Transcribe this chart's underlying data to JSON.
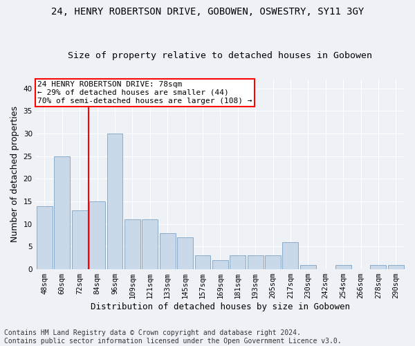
{
  "title": "24, HENRY ROBERTSON DRIVE, GOBOWEN, OSWESTRY, SY11 3GY",
  "subtitle": "Size of property relative to detached houses in Gobowen",
  "xlabel": "Distribution of detached houses by size in Gobowen",
  "ylabel": "Number of detached properties",
  "categories": [
    "48sqm",
    "60sqm",
    "72sqm",
    "84sqm",
    "96sqm",
    "109sqm",
    "121sqm",
    "133sqm",
    "145sqm",
    "157sqm",
    "169sqm",
    "181sqm",
    "193sqm",
    "205sqm",
    "217sqm",
    "230sqm",
    "242sqm",
    "254sqm",
    "266sqm",
    "278sqm",
    "290sqm"
  ],
  "values": [
    14,
    25,
    13,
    15,
    30,
    11,
    11,
    8,
    7,
    3,
    2,
    3,
    3,
    3,
    6,
    1,
    0,
    1,
    0,
    1,
    1
  ],
  "bar_color": "#c9d9ea",
  "bar_edge_color": "#8aaac8",
  "highlight_line_color": "red",
  "highlight_line_index": 2,
  "annotation_text_line1": "24 HENRY ROBERTSON DRIVE: 78sqm",
  "annotation_text_line2": "← 29% of detached houses are smaller (44)",
  "annotation_text_line3": "70% of semi-detached houses are larger (108) →",
  "annotation_box_facecolor": "white",
  "annotation_box_edgecolor": "red",
  "ylim": [
    0,
    42
  ],
  "yticks": [
    0,
    5,
    10,
    15,
    20,
    25,
    30,
    35,
    40
  ],
  "footer_line1": "Contains HM Land Registry data © Crown copyright and database right 2024.",
  "footer_line2": "Contains public sector information licensed under the Open Government Licence v3.0.",
  "background_color": "#eef2f7",
  "grid_color": "white",
  "title_fontsize": 10,
  "subtitle_fontsize": 9.5,
  "ylabel_fontsize": 9,
  "xlabel_fontsize": 9,
  "tick_fontsize": 7.5,
  "annotation_fontsize": 8,
  "footer_fontsize": 7
}
